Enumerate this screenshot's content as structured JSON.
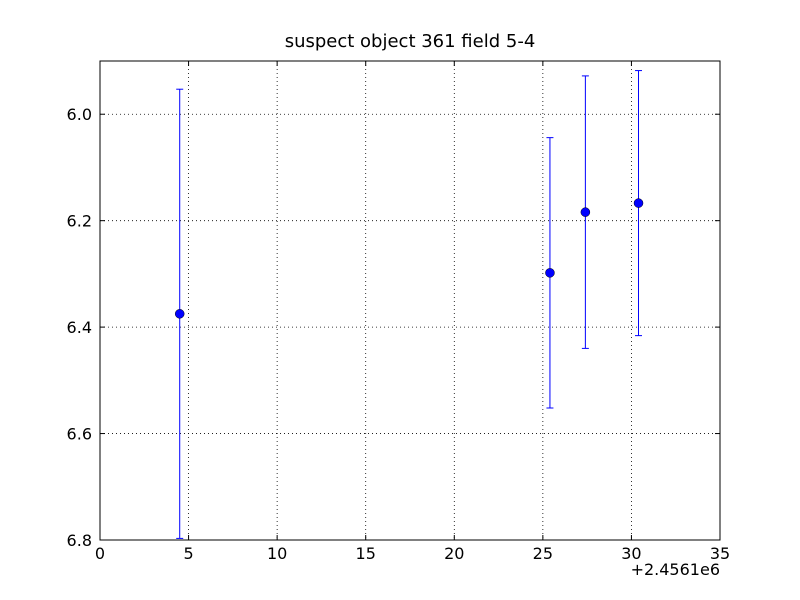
{
  "chart_data": {
    "type": "errorbar",
    "title": "suspect object 361 field 5-4",
    "x_offset_label": "+2.4561e6",
    "x": [
      4.5,
      25.4,
      27.4,
      30.4
    ],
    "values": [
      6.375,
      6.298,
      6.184,
      6.167
    ],
    "errors": [
      0.422,
      0.254,
      0.256,
      0.249
    ],
    "color": "#0000ff",
    "xlim": [
      0,
      35
    ],
    "xticks": [
      0,
      5,
      10,
      15,
      20,
      25,
      30,
      35
    ],
    "ylim": [
      6.8,
      5.9
    ],
    "yticks": [
      {
        "value": 6,
        "label": "6.0"
      },
      6.2,
      6.4,
      6.6,
      6.8
    ],
    "grid": true
  }
}
